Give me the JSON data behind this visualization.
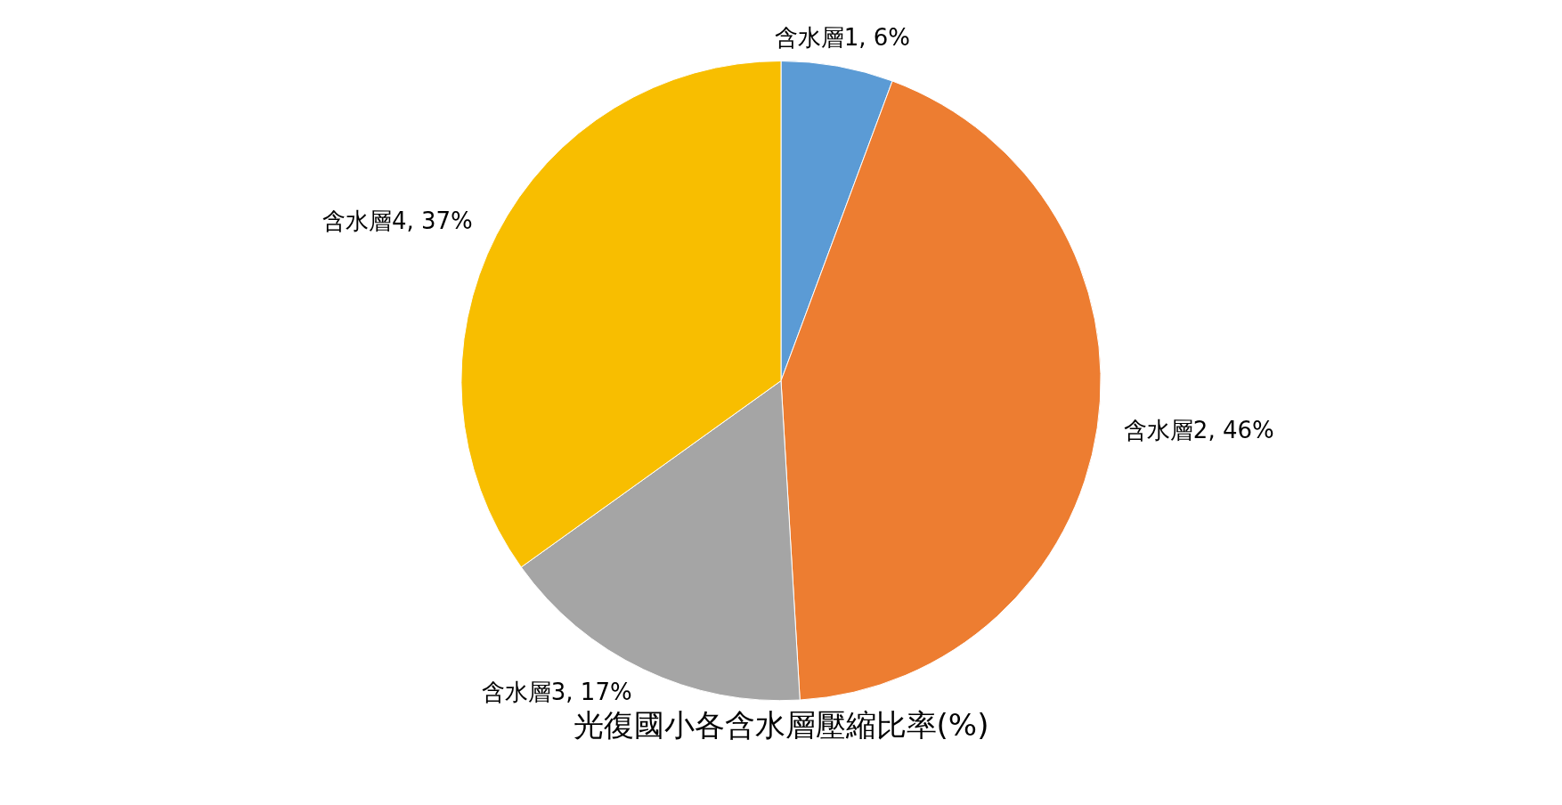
{
  "chart_data": {
    "type": "pie",
    "title": "光復國小各含水層壓縮比率(%)",
    "categories": [
      "含水層1",
      "含水層2",
      "含水層3",
      "含水層4"
    ],
    "values": [
      6,
      46,
      17,
      37
    ],
    "value_labels": [
      "6%",
      "46%",
      "17%",
      "37%"
    ],
    "colors": [
      "#5b9bd5",
      "#ed7d31",
      "#a5a5a5",
      "#f8be00"
    ],
    "legend": false
  }
}
